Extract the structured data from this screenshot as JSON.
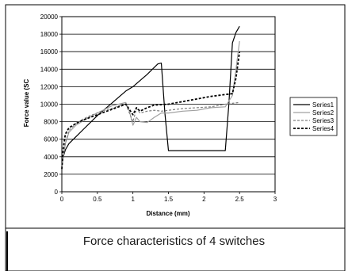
{
  "figure_caption": "Force characteristics of 4 switches",
  "chart_data": {
    "type": "line",
    "title": "",
    "xlabel": "Distance (mm)",
    "ylabel": "Force value (SC",
    "xlim": [
      0,
      3
    ],
    "ylim": [
      0,
      20000
    ],
    "x_ticks": [
      "0",
      "0.5",
      "1",
      "1.5",
      "2",
      "2.5",
      "3"
    ],
    "y_ticks": [
      "0",
      "2000",
      "4000",
      "6000",
      "8000",
      "10000",
      "12000",
      "14000",
      "16000",
      "18000",
      "20000"
    ],
    "grid": "horizontal",
    "legend_position": "right",
    "series": [
      {
        "name": "Series1",
        "style": "solid-black",
        "x": [
          0,
          0.02,
          0.05,
          0.1,
          0.2,
          0.3,
          0.4,
          0.5,
          0.6,
          0.7,
          0.8,
          0.9,
          1.0,
          1.1,
          1.2,
          1.3,
          1.35,
          1.4,
          1.45,
          1.5,
          1.6,
          1.8,
          2.0,
          2.2,
          2.3,
          2.35,
          2.4,
          2.45,
          2.5
        ],
        "y": [
          3000,
          4000,
          4800,
          5500,
          6300,
          7100,
          7900,
          8700,
          9400,
          10100,
          10800,
          11500,
          12000,
          12700,
          13400,
          14200,
          14600,
          14700,
          9000,
          4700,
          4700,
          4700,
          4700,
          4700,
          4700,
          10000,
          17000,
          18200,
          18900
        ]
      },
      {
        "name": "Series2",
        "style": "solid-gray",
        "x": [
          0,
          0.02,
          0.05,
          0.1,
          0.2,
          0.3,
          0.4,
          0.5,
          0.6,
          0.7,
          0.8,
          0.9,
          0.95,
          1.0,
          1.05,
          1.1,
          1.2,
          1.3,
          1.4,
          1.5,
          1.7,
          1.9,
          2.1,
          2.3,
          2.4,
          2.45,
          2.5
        ],
        "y": [
          3000,
          4000,
          5500,
          6800,
          7600,
          8100,
          8600,
          9000,
          9400,
          9800,
          10000,
          10200,
          9200,
          7600,
          8500,
          8000,
          7900,
          8500,
          9000,
          9000,
          9200,
          9300,
          9600,
          9700,
          11000,
          14000,
          17200
        ]
      },
      {
        "name": "Series3",
        "style": "dashed-gray",
        "x": [
          0,
          0.02,
          0.05,
          0.1,
          0.2,
          0.3,
          0.4,
          0.5,
          0.6,
          0.7,
          0.8,
          0.9,
          1.0,
          1.05,
          1.1,
          1.2,
          1.3,
          1.4,
          1.5,
          1.7,
          1.9,
          2.1,
          2.3,
          2.4,
          2.5
        ],
        "y": [
          2600,
          4000,
          5600,
          7000,
          7800,
          8300,
          8700,
          9000,
          9300,
          9500,
          9800,
          10000,
          8000,
          9500,
          9000,
          9200,
          9300,
          9200,
          9300,
          9500,
          9600,
          9700,
          10000,
          10100,
          10200
        ]
      },
      {
        "name": "Series4",
        "style": "dashed-black",
        "x": [
          0,
          0.02,
          0.05,
          0.1,
          0.2,
          0.3,
          0.4,
          0.5,
          0.6,
          0.7,
          0.8,
          0.9,
          1.0,
          1.05,
          1.1,
          1.2,
          1.3,
          1.5,
          1.7,
          1.9,
          2.1,
          2.3,
          2.4,
          2.45,
          2.5
        ],
        "y": [
          2600,
          5000,
          6600,
          7300,
          7800,
          8200,
          8500,
          8800,
          9100,
          9400,
          9700,
          10000,
          8800,
          9600,
          9200,
          9600,
          9900,
          10000,
          10300,
          10600,
          10900,
          11100,
          11200,
          13000,
          16000
        ]
      }
    ]
  }
}
